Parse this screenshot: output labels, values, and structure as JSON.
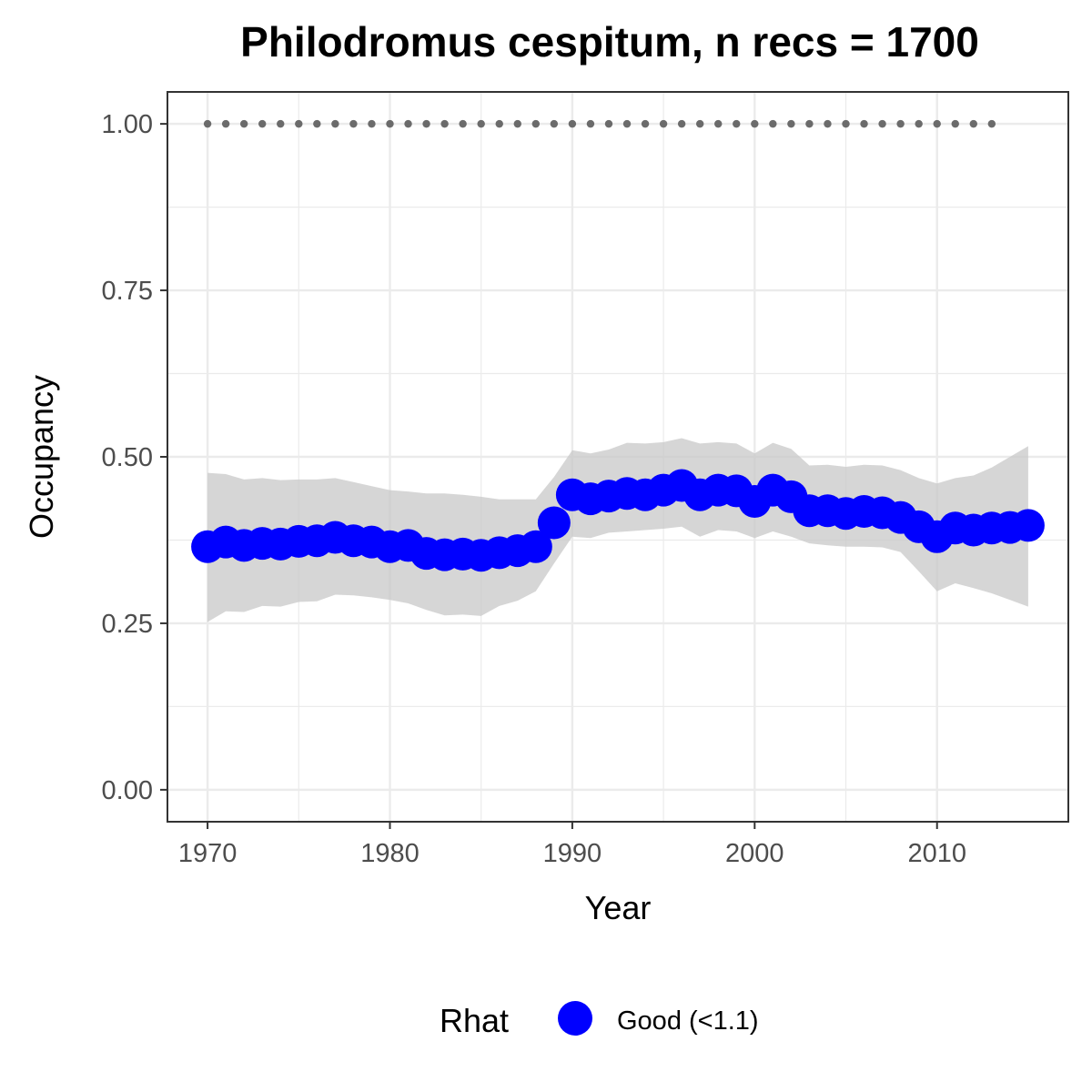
{
  "chart_data": {
    "type": "line",
    "title": "Philodromus cespitum, n recs = 1700",
    "xlabel": "Year",
    "ylabel": "Occupancy",
    "xlim": [
      1967.8,
      2017.2
    ],
    "ylim": [
      -0.048,
      1.048
    ],
    "x_ticks": [
      1970,
      1980,
      1990,
      2000,
      2010
    ],
    "x_tick_labels": [
      "1970",
      "1980",
      "1990",
      "2000",
      "2010"
    ],
    "y_ticks": [
      0,
      0.25,
      0.5,
      0.75,
      1.0
    ],
    "y_tick_labels": [
      "0.00",
      "0.25",
      "0.50",
      "0.75",
      "1.00"
    ],
    "grid": true,
    "legend": {
      "title": "Rhat",
      "position": "bottom",
      "entries": [
        {
          "label": "Good (<1.1)",
          "color": "#0000ff"
        }
      ]
    },
    "colors": {
      "points": "#0000ff",
      "ribbon": "#c8c8c8",
      "reference": "#6b6b6b",
      "panel_border": "#333333",
      "grid": "#ebebeb"
    },
    "series": [
      {
        "name": "Good (<1.1)",
        "x": [
          1970,
          1971,
          1972,
          1973,
          1974,
          1975,
          1976,
          1977,
          1978,
          1979,
          1980,
          1981,
          1982,
          1983,
          1984,
          1985,
          1986,
          1987,
          1988,
          1989,
          1990,
          1991,
          1992,
          1993,
          1994,
          1995,
          1996,
          1997,
          1998,
          1999,
          2000,
          2001,
          2002,
          2003,
          2004,
          2005,
          2006,
          2007,
          2008,
          2009,
          2010,
          2011,
          2012,
          2013,
          2014,
          2015
        ],
        "y": [
          0.365,
          0.372,
          0.367,
          0.37,
          0.369,
          0.373,
          0.374,
          0.379,
          0.374,
          0.372,
          0.365,
          0.367,
          0.355,
          0.353,
          0.354,
          0.352,
          0.356,
          0.359,
          0.365,
          0.401,
          0.443,
          0.437,
          0.441,
          0.445,
          0.443,
          0.45,
          0.457,
          0.443,
          0.45,
          0.449,
          0.433,
          0.45,
          0.44,
          0.419,
          0.419,
          0.415,
          0.418,
          0.416,
          0.409,
          0.395,
          0.38,
          0.393,
          0.39,
          0.393,
          0.394,
          0.397
        ],
        "lower": [
          0.252,
          0.268,
          0.267,
          0.276,
          0.275,
          0.282,
          0.283,
          0.293,
          0.292,
          0.289,
          0.285,
          0.28,
          0.27,
          0.262,
          0.263,
          0.261,
          0.276,
          0.284,
          0.298,
          0.34,
          0.38,
          0.378,
          0.386,
          0.388,
          0.39,
          0.392,
          0.395,
          0.38,
          0.39,
          0.388,
          0.378,
          0.388,
          0.38,
          0.37,
          0.367,
          0.365,
          0.365,
          0.364,
          0.357,
          0.328,
          0.298,
          0.31,
          0.303,
          0.295,
          0.285,
          0.275
        ],
        "upper": [
          0.476,
          0.474,
          0.466,
          0.468,
          0.465,
          0.466,
          0.466,
          0.468,
          0.462,
          0.456,
          0.45,
          0.448,
          0.445,
          0.445,
          0.443,
          0.44,
          0.436,
          0.436,
          0.436,
          0.47,
          0.51,
          0.505,
          0.511,
          0.521,
          0.52,
          0.522,
          0.528,
          0.52,
          0.522,
          0.52,
          0.505,
          0.521,
          0.512,
          0.487,
          0.488,
          0.485,
          0.488,
          0.487,
          0.48,
          0.468,
          0.46,
          0.468,
          0.472,
          0.484,
          0.5,
          0.516
        ]
      }
    ],
    "reference_points": {
      "x": [
        1970,
        1971,
        1972,
        1973,
        1974,
        1975,
        1976,
        1977,
        1978,
        1979,
        1980,
        1981,
        1982,
        1983,
        1984,
        1985,
        1986,
        1987,
        1988,
        1989,
        1990,
        1991,
        1992,
        1993,
        1994,
        1995,
        1996,
        1997,
        1998,
        1999,
        2000,
        2001,
        2002,
        2003,
        2004,
        2005,
        2006,
        2007,
        2008,
        2009,
        2010,
        2011,
        2012,
        2013
      ],
      "y": 1.0
    }
  }
}
